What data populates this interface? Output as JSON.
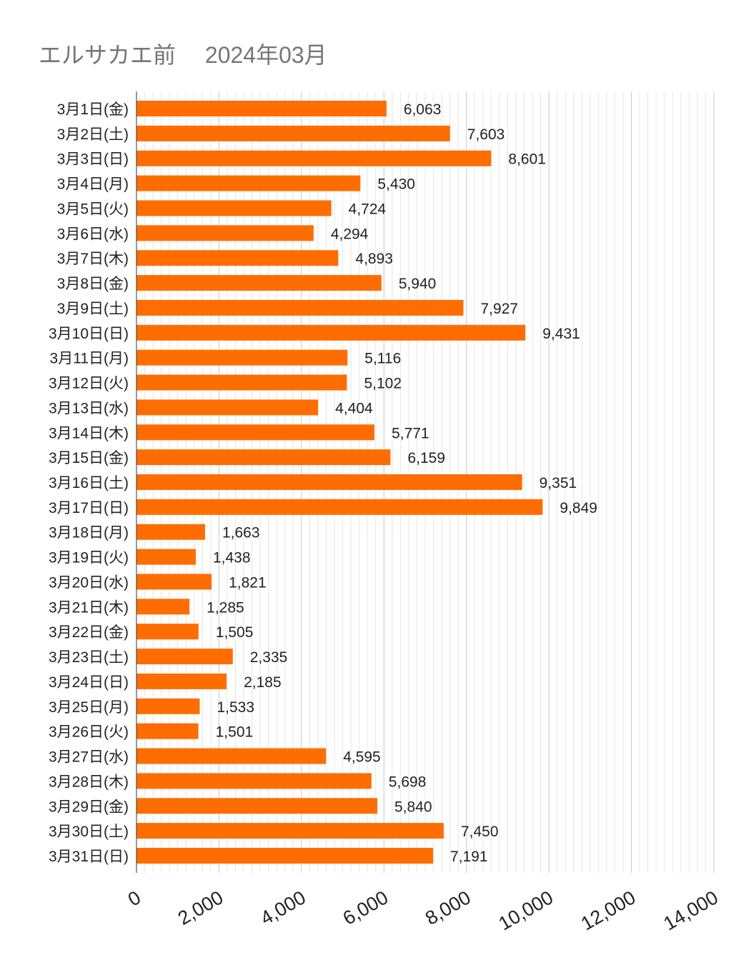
{
  "chart_data": {
    "type": "bar",
    "orientation": "horizontal",
    "title": "エルサカエ前　 2024年03月",
    "xlabel": "",
    "ylabel": "",
    "xlim": [
      0,
      14000
    ],
    "xticks": [
      0,
      2000,
      4000,
      6000,
      8000,
      10000,
      12000,
      14000
    ],
    "xtick_labels": [
      "0",
      "2,000",
      "4,000",
      "6,000",
      "8,000",
      "10,000",
      "12,000",
      "14,000"
    ],
    "minor_grid_step": 200,
    "grid": true,
    "bar_color": "#ff6d01",
    "categories": [
      "3月1日(金)",
      "3月2日(土)",
      "3月3日(日)",
      "3月4日(月)",
      "3月5日(火)",
      "3月6日(水)",
      "3月7日(木)",
      "3月8日(金)",
      "3月9日(土)",
      "3月10日(日)",
      "3月11日(月)",
      "3月12日(火)",
      "3月13日(水)",
      "3月14日(木)",
      "3月15日(金)",
      "3月16日(土)",
      "3月17日(日)",
      "3月18日(月)",
      "3月19日(火)",
      "3月20日(水)",
      "3月21日(木)",
      "3月22日(金)",
      "3月23日(土)",
      "3月24日(日)",
      "3月25日(月)",
      "3月26日(火)",
      "3月27日(水)",
      "3月28日(木)",
      "3月29日(金)",
      "3月30日(土)",
      "3月31日(日)"
    ],
    "values": [
      6063,
      7603,
      8601,
      5430,
      4724,
      4294,
      4893,
      5940,
      7927,
      9431,
      5116,
      5102,
      4404,
      5771,
      6159,
      9351,
      9849,
      1663,
      1438,
      1821,
      1285,
      1505,
      2335,
      2185,
      1533,
      1501,
      4595,
      5698,
      5840,
      7450,
      7191
    ],
    "value_labels": [
      "6,063",
      "7,603",
      "8,601",
      "5,430",
      "4,724",
      "4,294",
      "4,893",
      "5,940",
      "7,927",
      "9,431",
      "5,116",
      "5,102",
      "4,404",
      "5,771",
      "6,159",
      "9,351",
      "9,849",
      "1,663",
      "1,438",
      "1,821",
      "1,285",
      "1,505",
      "2,335",
      "2,185",
      "1,533",
      "1,501",
      "4,595",
      "5,698",
      "5,840",
      "7,450",
      "7,191"
    ]
  }
}
